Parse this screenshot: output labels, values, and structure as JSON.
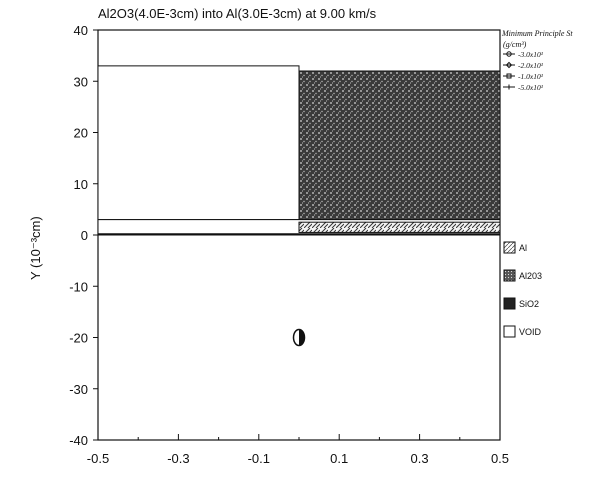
{
  "chart_data": {
    "type": "heatmap",
    "title": "Al2O3(4.0E-3cm) into Al(3.0E-3cm) at 9.00 km/s",
    "xlabel": "",
    "ylabel": "Y (10⁻³cm)",
    "xlim": [
      -0.5,
      0.5
    ],
    "ylim": [
      -40,
      40
    ],
    "x_ticks": [
      "-0.5",
      "-0.3",
      "-0.1",
      "0.1",
      "0.3",
      "0.5"
    ],
    "x_tick_values": [
      -0.5,
      -0.3,
      -0.1,
      0.1,
      0.3,
      0.5
    ],
    "y_ticks": [
      "40",
      "30",
      "20",
      "10",
      "0",
      "-10",
      "-20",
      "-30",
      "-40"
    ],
    "y_tick_values": [
      40,
      30,
      20,
      10,
      0,
      -10,
      -20,
      -30,
      -40
    ],
    "grid": false,
    "contour_legend": {
      "title": "Minimum Principle St",
      "units": "(g/cm³)",
      "entries": [
        {
          "marker": "circle",
          "label": "-3.0x10¹"
        },
        {
          "marker": "diamond",
          "label": "-2.0x10¹"
        },
        {
          "marker": "square",
          "label": "-1.0x10¹"
        },
        {
          "marker": "star",
          "label": "-5.0x10¹"
        }
      ]
    },
    "materials_legend": [
      {
        "label": "Al",
        "pattern": "light-hatch"
      },
      {
        "label": "Al203",
        "pattern": "dark-stipple"
      },
      {
        "label": "SiO2",
        "pattern": "solid-dark"
      },
      {
        "label": "VOID",
        "pattern": "empty"
      }
    ],
    "regions": [
      {
        "material": "Al",
        "x": [
          -0.5,
          0.0
        ],
        "y": [
          3,
          33
        ]
      },
      {
        "material": "Al2O3",
        "x": [
          0.0,
          0.5
        ],
        "y": [
          3,
          32
        ]
      },
      {
        "material": "Al",
        "x": [
          -0.5,
          0.5
        ],
        "y": [
          0,
          3
        ]
      },
      {
        "material": "Al2O3",
        "x": [
          0.0,
          0.5
        ],
        "y": [
          0.5,
          2.5
        ]
      }
    ],
    "markers": [
      {
        "shape": "half-disc",
        "x": 0.0,
        "y": -20
      }
    ]
  },
  "colors": {
    "ink": "#111111",
    "stipple_light": "#9a9a9a",
    "stipple_dark": "#2a2a2a",
    "background": "#ffffff"
  }
}
